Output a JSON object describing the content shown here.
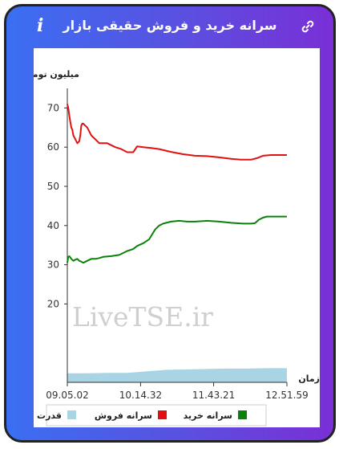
{
  "header": {
    "title": "سرانه خرید و فروش حقیقی بازار",
    "info_icon": "info-icon",
    "link_icon": "link-icon",
    "colors": {
      "gradient_start": "#3a6ff2",
      "gradient_end": "#7a2fd6"
    }
  },
  "chart_data": {
    "type": "line",
    "ylabel": "میلیون تومان",
    "xlabel": "زمان",
    "ylim": [
      0,
      75
    ],
    "yticks": [
      20,
      30,
      40,
      50,
      60,
      70
    ],
    "xticks": [
      "09.05.02",
      "10.14.32",
      "11.43.21",
      "12.51.59"
    ],
    "watermark": "LiveTSE.ir",
    "legend": [
      {
        "name": "سرانه خرید",
        "color": "#0a820a"
      },
      {
        "name": "سرانه فروش",
        "color": "#e11111"
      },
      {
        "name": "قدرت",
        "color": "#a8d4e4"
      }
    ],
    "series": [
      {
        "name": "سرانه فروش",
        "color": "#e11111",
        "points": [
          [
            0,
            71
          ],
          [
            0.5,
            70
          ],
          [
            1,
            68
          ],
          [
            1.5,
            66.5
          ],
          [
            2,
            65
          ],
          [
            2.5,
            64.5
          ],
          [
            3,
            63
          ],
          [
            4,
            62
          ],
          [
            5,
            61
          ],
          [
            6,
            61.5
          ],
          [
            6.5,
            63
          ],
          [
            7,
            65.5
          ],
          [
            7.5,
            66
          ],
          [
            8,
            66
          ],
          [
            9,
            65.5
          ],
          [
            10,
            65
          ],
          [
            12,
            63
          ],
          [
            14,
            62
          ],
          [
            16,
            61
          ],
          [
            20,
            61
          ],
          [
            24,
            60
          ],
          [
            27,
            59.5
          ],
          [
            30,
            58.7
          ],
          [
            33,
            58.7
          ],
          [
            35,
            60.2
          ],
          [
            38,
            60
          ],
          [
            42,
            59.8
          ],
          [
            46,
            59.5
          ],
          [
            52,
            58.8
          ],
          [
            58,
            58.2
          ],
          [
            64,
            57.8
          ],
          [
            70,
            57.7
          ],
          [
            76,
            57.4
          ],
          [
            82,
            57
          ],
          [
            87,
            56.8
          ],
          [
            92,
            56.8
          ],
          [
            95,
            57.2
          ],
          [
            98,
            57.8
          ],
          [
            102,
            58
          ],
          [
            106,
            58
          ],
          [
            110,
            58
          ]
        ]
      },
      {
        "name": "سرانه خرید",
        "color": "#0a820a",
        "points": [
          [
            0,
            30.5
          ],
          [
            0.5,
            32
          ],
          [
            1,
            32.2
          ],
          [
            2,
            31.5
          ],
          [
            3,
            31
          ],
          [
            4,
            31.3
          ],
          [
            5,
            31.5
          ],
          [
            6,
            31
          ],
          [
            7,
            30.8
          ],
          [
            8,
            30.5
          ],
          [
            10,
            31
          ],
          [
            12,
            31.5
          ],
          [
            14,
            31.5
          ],
          [
            16,
            31.7
          ],
          [
            18,
            32
          ],
          [
            22,
            32.2
          ],
          [
            26,
            32.5
          ],
          [
            30,
            33.5
          ],
          [
            33,
            34
          ],
          [
            35,
            34.8
          ],
          [
            38,
            35.5
          ],
          [
            41,
            36.5
          ],
          [
            44,
            39
          ],
          [
            46,
            40
          ],
          [
            48,
            40.5
          ],
          [
            52,
            41
          ],
          [
            56,
            41.2
          ],
          [
            60,
            41
          ],
          [
            64,
            41
          ],
          [
            70,
            41.2
          ],
          [
            76,
            41
          ],
          [
            82,
            40.7
          ],
          [
            88,
            40.5
          ],
          [
            92,
            40.5
          ],
          [
            94,
            40.6
          ],
          [
            96,
            41.5
          ],
          [
            98,
            42
          ],
          [
            100,
            42.3
          ],
          [
            104,
            42.3
          ],
          [
            110,
            42.3
          ]
        ]
      },
      {
        "name": "قدرت",
        "color": "#a8d4e4",
        "points": [
          [
            0,
            2.3
          ],
          [
            10,
            2.3
          ],
          [
            20,
            2.4
          ],
          [
            30,
            2.4
          ],
          [
            40,
            2.8
          ],
          [
            50,
            3.2
          ],
          [
            60,
            3.3
          ],
          [
            70,
            3.4
          ],
          [
            80,
            3.5
          ],
          [
            90,
            3.5
          ],
          [
            100,
            3.6
          ],
          [
            110,
            3.6
          ]
        ]
      }
    ]
  }
}
